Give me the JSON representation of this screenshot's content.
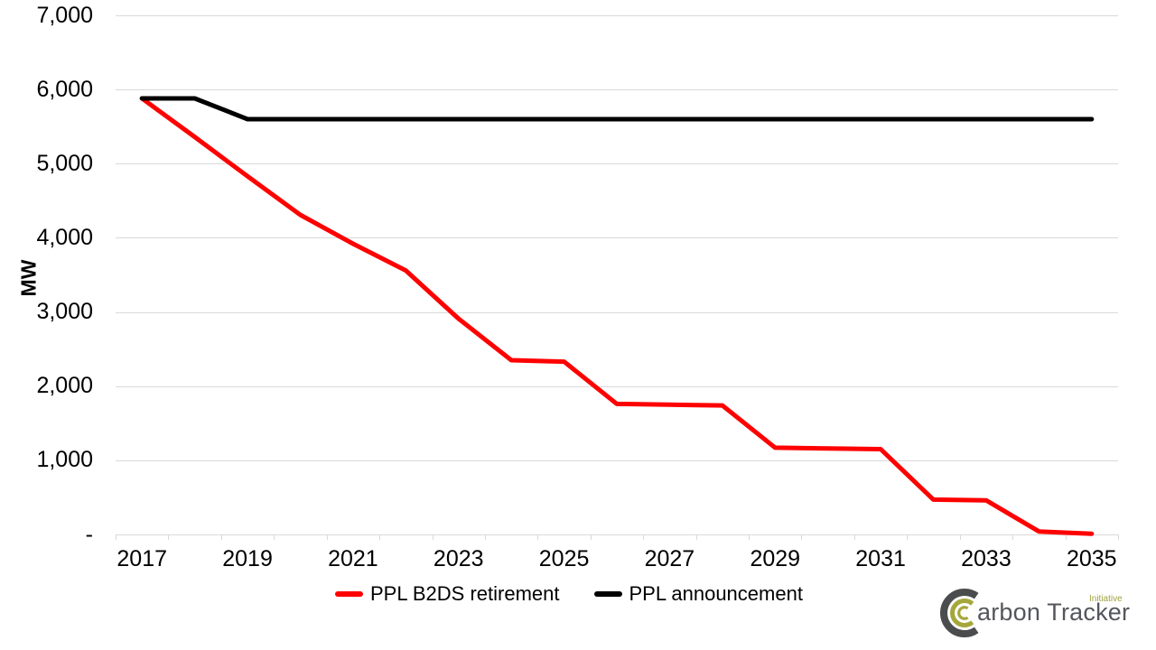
{
  "chart_data": {
    "type": "line",
    "title": "",
    "xlabel": "",
    "ylabel": "MW",
    "ylim": [
      0,
      7000
    ],
    "grid": true,
    "legend_position": "bottom",
    "x": [
      2017,
      2018,
      2019,
      2020,
      2021,
      2022,
      2023,
      2024,
      2025,
      2026,
      2027,
      2028,
      2029,
      2030,
      2031,
      2032,
      2033,
      2034,
      2035
    ],
    "x_tick_labels": [
      "2017",
      "2019",
      "2021",
      "2023",
      "2025",
      "2027",
      "2029",
      "2031",
      "2033",
      "2035"
    ],
    "y_ticks": [
      {
        "value": 7000,
        "label": "7,000"
      },
      {
        "value": 6000,
        "label": "6,000"
      },
      {
        "value": 5000,
        "label": "5,000"
      },
      {
        "value": 4000,
        "label": "4,000"
      },
      {
        "value": 3000,
        "label": "3,000"
      },
      {
        "value": 2000,
        "label": "2,000"
      },
      {
        "value": 1000,
        "label": "1,000"
      },
      {
        "value": 0,
        "label": "-"
      }
    ],
    "series": [
      {
        "name": "PPL B2DS retirement",
        "color": "#ff0000",
        "values": [
          5880,
          5360,
          4830,
          4310,
          3920,
          3560,
          2910,
          2350,
          2330,
          1760,
          1750,
          1740,
          1170,
          1160,
          1150,
          470,
          460,
          40,
          10
        ]
      },
      {
        "name": "PPL announcement",
        "color": "#000000",
        "values": [
          5880,
          5880,
          5600,
          5600,
          5600,
          5600,
          5600,
          5600,
          5600,
          5600,
          5600,
          5600,
          5600,
          5600,
          5600,
          5600,
          5600,
          5600,
          5600
        ]
      }
    ],
    "colors": {
      "grid": "#d9d9d9",
      "axis": "#d9d9d9",
      "text": "#000000",
      "background": "#ffffff"
    }
  },
  "logo": {
    "brand": "Carbon Tracker",
    "sub": "Initiative",
    "colors": {
      "mark_dark": "#4b4c4e",
      "mark_olive": "#a6a73b",
      "text": "#54565b",
      "sub_text": "#9fa13d"
    }
  }
}
